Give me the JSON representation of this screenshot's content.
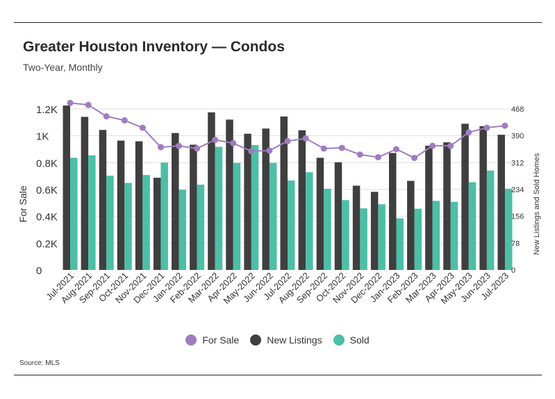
{
  "header": {
    "title": "Greater Houston Inventory — Condos",
    "subtitle": "Two-Year, Monthly"
  },
  "footer": {
    "source": "Source: MLS"
  },
  "colors": {
    "for_sale": "#a07cc0",
    "new_listings": "#3f3f3f",
    "sold": "#4cbfa6",
    "axis_text": "#333333",
    "grid": "#dddddd"
  },
  "chart_data": {
    "type": "bar",
    "categories": [
      "Jul-2021",
      "Aug-2021",
      "Sep-2021",
      "Oct-2021",
      "Nov-2021",
      "Dec-2021",
      "Jan-2022",
      "Feb-2022",
      "Mar-2022",
      "Apr-2022",
      "May-2022",
      "Jun-2022",
      "Jul-2022",
      "Aug-2022",
      "Sep-2022",
      "Oct-2022",
      "Nov-2022",
      "Dec-2022",
      "Jan-2023",
      "Feb-2023",
      "Mar-2023",
      "Apr-2023",
      "May-2023",
      "Jun-2023",
      "Jul-2023"
    ],
    "left_axis": {
      "label": "For Sale",
      "ticks": [
        "1.2K",
        "1K",
        "0.8K",
        "0.6K",
        "0.4K",
        "0.2K",
        "0"
      ],
      "ylim": [
        0,
        1200
      ]
    },
    "right_axis": {
      "label": "New Listings and Sold Homes",
      "ticks": [
        "468",
        "390",
        "312",
        "234",
        "156",
        "78",
        "0"
      ],
      "ylim": [
        0,
        468
      ]
    },
    "series": [
      {
        "name": "For Sale",
        "type": "line",
        "axis": "left",
        "values": [
          1245,
          1230,
          1145,
          1115,
          1060,
          915,
          925,
          905,
          970,
          945,
          885,
          890,
          960,
          980,
          905,
          910,
          860,
          840,
          900,
          835,
          925,
          925,
          1025,
          1060,
          1075
        ]
      },
      {
        "name": "New Listings",
        "type": "bar",
        "axis": "right",
        "values": [
          478,
          445,
          407,
          376,
          374,
          268,
          398,
          364,
          458,
          437,
          396,
          411,
          446,
          406,
          326,
          313,
          245,
          227,
          340,
          259,
          361,
          371,
          425,
          418,
          393
        ]
      },
      {
        "name": "Sold",
        "type": "bar",
        "axis": "right",
        "values": [
          326,
          333,
          274,
          253,
          276,
          312,
          233,
          248,
          358,
          311,
          363,
          311,
          260,
          284,
          236,
          203,
          179,
          191,
          150,
          178,
          201,
          198,
          255,
          289,
          236
        ]
      }
    ],
    "legend": {
      "position": "bottom",
      "entries": [
        "For Sale",
        "New Listings",
        "Sold"
      ]
    },
    "grid": "horizontal"
  }
}
